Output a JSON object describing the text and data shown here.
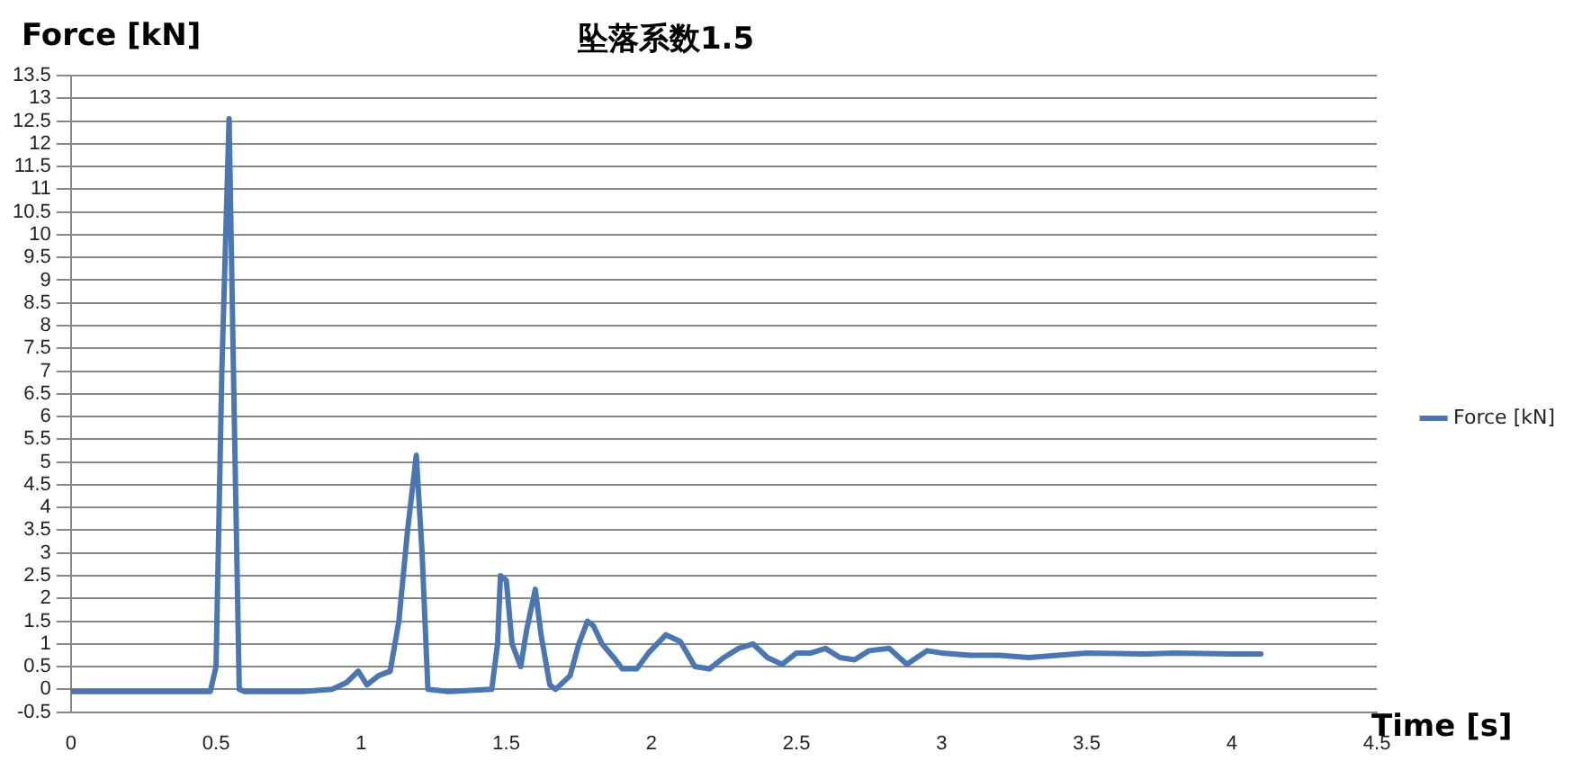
{
  "chart_data": {
    "type": "line",
    "title": "坠落系数1.5",
    "xlabel": "Time [s]",
    "ylabel": "Force [kN]",
    "x": [
      0,
      0.2,
      0.4,
      0.48,
      0.5,
      0.52,
      0.545,
      0.56,
      0.58,
      0.6,
      0.8,
      0.9,
      0.95,
      0.99,
      1.02,
      1.06,
      1.1,
      1.13,
      1.16,
      1.19,
      1.21,
      1.23,
      1.3,
      1.45,
      1.47,
      1.48,
      1.5,
      1.52,
      1.55,
      1.57,
      1.6,
      1.62,
      1.65,
      1.67,
      1.72,
      1.75,
      1.78,
      1.8,
      1.83,
      1.87,
      1.9,
      1.95,
      1.99,
      2.05,
      2.1,
      2.15,
      2.2,
      2.25,
      2.3,
      2.35,
      2.4,
      2.45,
      2.5,
      2.55,
      2.6,
      2.65,
      2.7,
      2.75,
      2.82,
      2.88,
      2.95,
      3.0,
      3.1,
      3.2,
      3.3,
      3.4,
      3.5,
      3.7,
      3.8,
      4.0,
      4.1
    ],
    "series": [
      {
        "name": "Force [kN]",
        "color": "#4a76b2",
        "values": [
          -0.05,
          -0.05,
          -0.05,
          -0.05,
          0.5,
          7,
          12.55,
          7,
          0,
          -0.05,
          -0.05,
          0,
          0.15,
          0.4,
          0.1,
          0.3,
          0.4,
          1.5,
          3.5,
          5.15,
          3,
          0,
          -0.05,
          0,
          1,
          2.5,
          2.4,
          1,
          0.5,
          1.3,
          2.2,
          1.2,
          0.1,
          0,
          0.3,
          1,
          1.5,
          1.4,
          1,
          0.7,
          0.45,
          0.45,
          0.8,
          1.2,
          1.05,
          0.5,
          0.45,
          0.7,
          0.9,
          1,
          0.7,
          0.55,
          0.8,
          0.8,
          0.9,
          0.7,
          0.65,
          0.85,
          0.9,
          0.55,
          0.85,
          0.8,
          0.75,
          0.75,
          0.7,
          0.75,
          0.8,
          0.78,
          0.8,
          0.78,
          0.78
        ]
      }
    ],
    "xlim": [
      0,
      4.5
    ],
    "xticks": [
      0,
      0.5,
      1,
      1.5,
      2,
      2.5,
      3,
      3.5,
      4,
      4.5
    ],
    "ylim": [
      -0.5,
      13.5
    ],
    "yticks": [
      -0.5,
      0,
      0.5,
      1,
      1.5,
      2,
      2.5,
      3,
      3.5,
      4,
      4.5,
      5,
      5.5,
      6,
      6.5,
      7,
      7.5,
      8,
      8.5,
      9,
      9.5,
      10,
      10.5,
      11,
      11.5,
      12,
      12.5,
      13,
      13.5
    ],
    "grid": "y",
    "legend": "right",
    "marker": "none",
    "line_style": "solid"
  }
}
